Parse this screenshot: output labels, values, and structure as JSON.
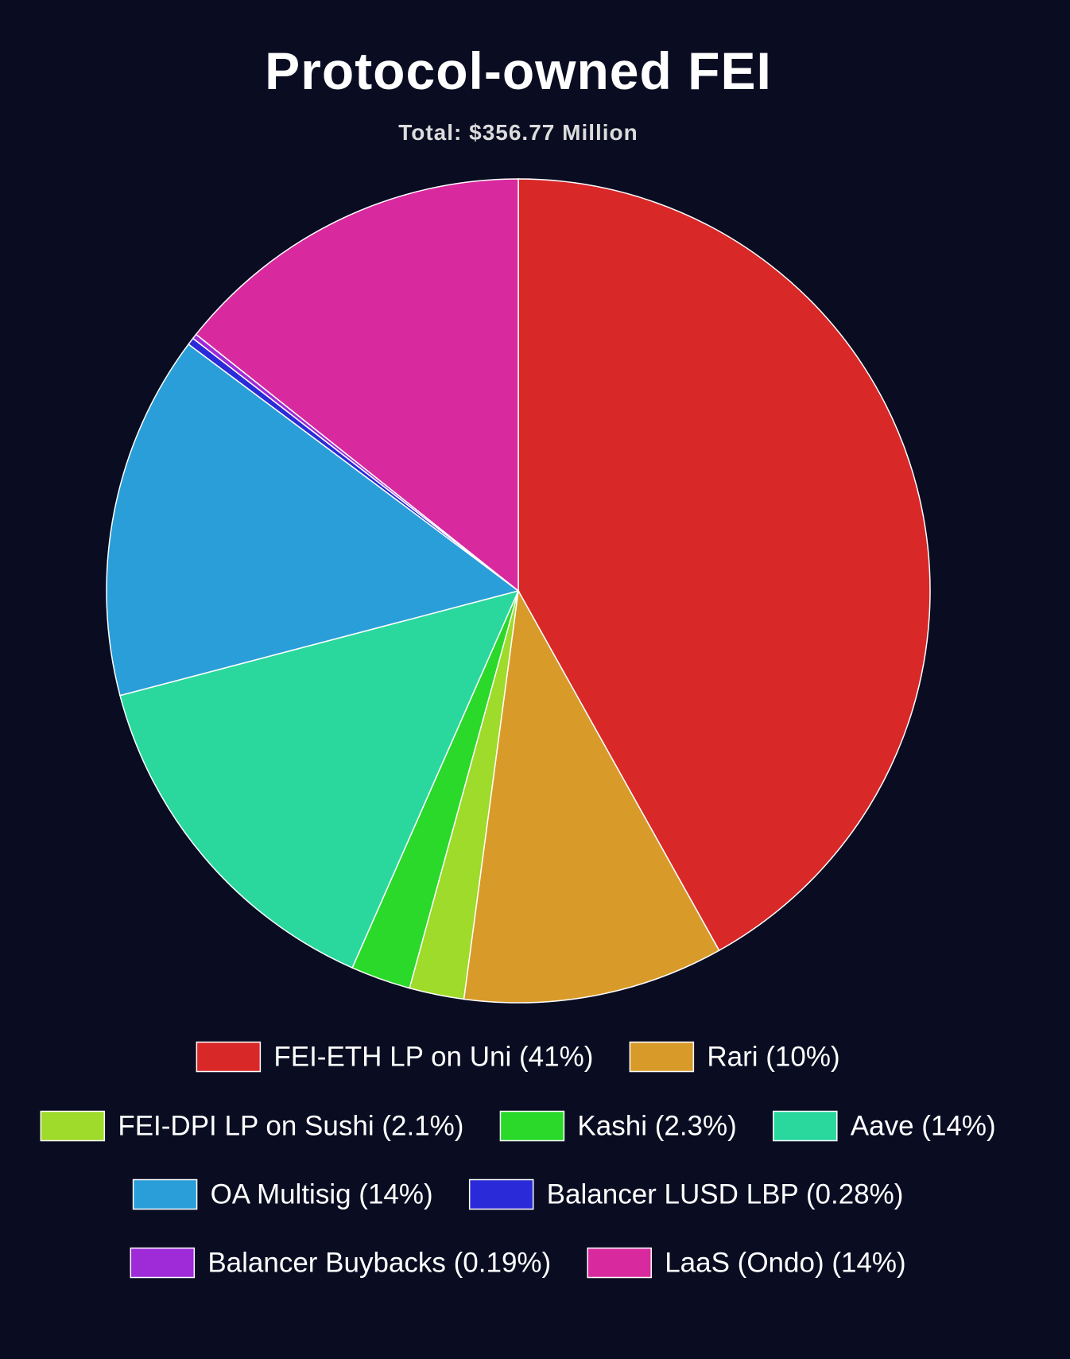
{
  "chart_data": {
    "type": "pie",
    "title": "Protocol-owned FEI",
    "subtitle": "Total: $356.77 Million",
    "categories": [
      "FEI-ETH LP on Uni (41%)",
      "Rari (10%)",
      "FEI-DPI LP on Sushi (2.1%)",
      "Kashi (2.3%)",
      "Aave (14%)",
      "OA Multisig (14%)",
      "Balancer LUSD LBP (0.28%)",
      "Balancer Buybacks (0.19%)",
      "LaaS (Ondo) (14%)"
    ],
    "values": [
      41,
      10,
      2.1,
      2.3,
      14,
      14,
      0.28,
      0.19,
      14
    ],
    "colors": [
      "#d92828",
      "#d89b2a",
      "#9edb2a",
      "#2ad92a",
      "#2ad89e",
      "#2a9ed8",
      "#2a2ad8",
      "#9e2ad8",
      "#d82a9e"
    ],
    "legend": "bottom"
  }
}
